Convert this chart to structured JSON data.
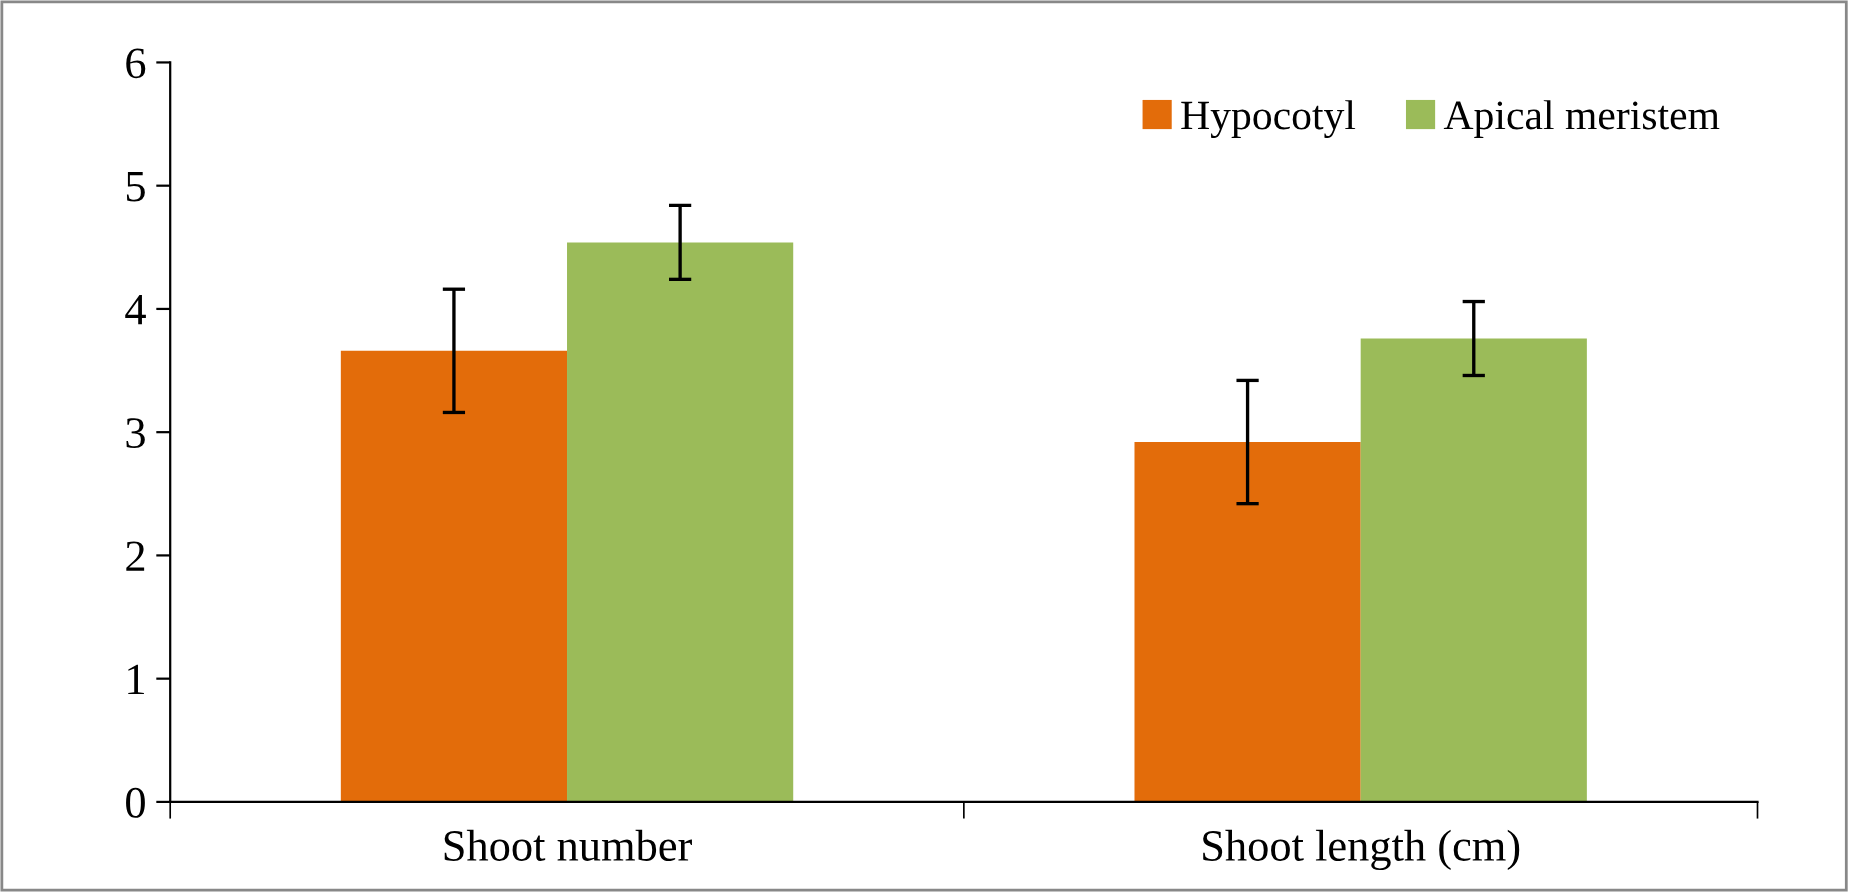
{
  "chart_data": {
    "type": "bar",
    "categories": [
      "Shoot number",
      "Shoot length (cm)"
    ],
    "series": [
      {
        "name": "Hypocotyl",
        "color": "#e36c0a",
        "values": [
          3.66,
          2.92
        ],
        "errors": [
          0.5,
          0.5
        ]
      },
      {
        "name": "Apical meristem",
        "color": "#9bbb59",
        "values": [
          4.54,
          3.76
        ],
        "errors": [
          0.3,
          0.3
        ]
      }
    ],
    "ylim": [
      0,
      6
    ],
    "yticks": [
      0,
      1,
      2,
      3,
      4,
      5,
      6
    ],
    "grid": false,
    "legend": "top right"
  }
}
